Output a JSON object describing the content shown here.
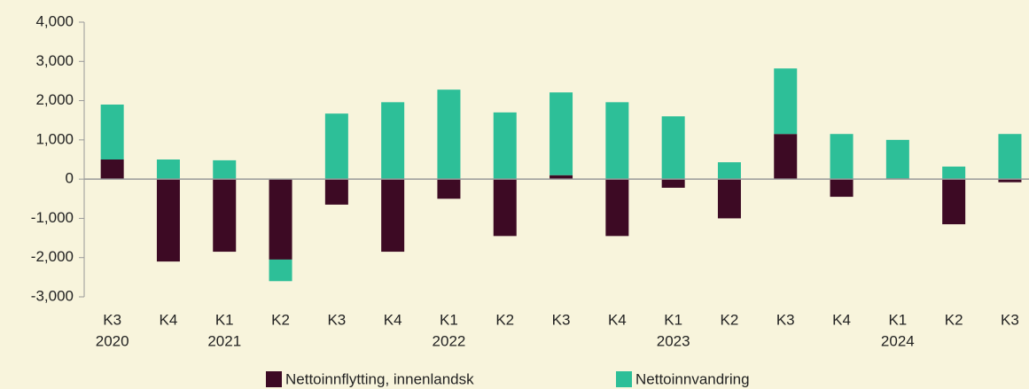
{
  "chart_data": {
    "type": "stacked_bar",
    "categories": [
      "K3",
      "K4",
      "K1",
      "K2",
      "K3",
      "K4",
      "K1",
      "K2",
      "K3",
      "K4",
      "K1",
      "K2",
      "K3",
      "K4",
      "K1",
      "K2",
      "K3"
    ],
    "category_groups": [
      "2020",
      null,
      "2021",
      null,
      null,
      null,
      "2022",
      null,
      null,
      null,
      "2023",
      null,
      null,
      null,
      "2024",
      null,
      null
    ],
    "series": [
      {
        "name": "Nettoinnflytting, innenlandsk",
        "color": "#3d0a24",
        "values": [
          500,
          -2100,
          -1850,
          -2050,
          -650,
          -1850,
          -500,
          -1450,
          100,
          -1450,
          -220,
          -1000,
          1150,
          -450,
          20,
          -1150,
          -80
        ]
      },
      {
        "name": "Nettoinnvandring",
        "color": "#2dbf98",
        "values": [
          1400,
          500,
          480,
          -550,
          1670,
          1960,
          2280,
          1700,
          2110,
          1960,
          1600,
          430,
          1670,
          1150,
          980,
          320,
          1150
        ]
      }
    ],
    "ylim": [
      -3000,
      4000
    ],
    "yticks": [
      {
        "value": -3000,
        "label": "-3,000"
      },
      {
        "value": -2000,
        "label": "-2,000"
      },
      {
        "value": -1000,
        "label": "-1,000"
      },
      0,
      {
        "value": 1000,
        "label": "1,000"
      },
      {
        "value": 2000,
        "label": "2,000"
      },
      {
        "value": 3000,
        "label": "3,000"
      },
      {
        "value": 4000,
        "label": "4,000"
      }
    ],
    "legend": "bottom"
  }
}
